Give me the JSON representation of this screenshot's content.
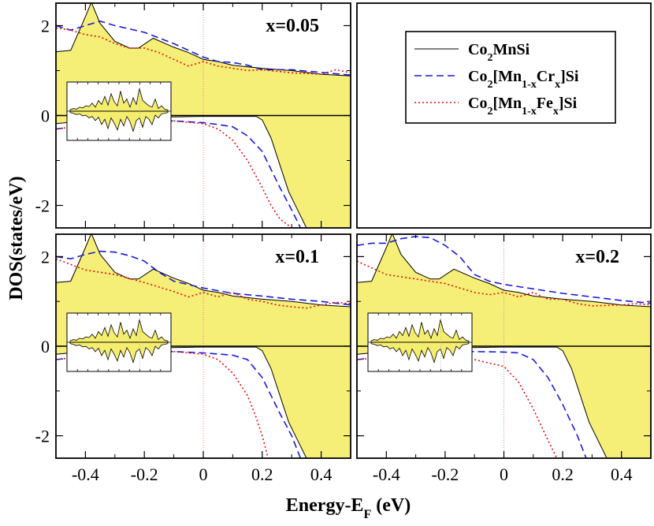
{
  "chart_data": {
    "type": "line",
    "xlabel": "Energy-E",
    "xlabel_sub": "F",
    "xlabel_unit": "(eV)",
    "ylabel": "DOS(states/eV)",
    "xlim": [
      -0.5,
      0.5
    ],
    "ylim": [
      -2.5,
      2.5
    ],
    "x_ticks": [
      "-0.4",
      "-0.2",
      "0",
      "0.2",
      "0.4"
    ],
    "x_tick_values": [
      -0.4,
      -0.2,
      0,
      0.2,
      0.4
    ],
    "y_ticks": [
      "2",
      "0",
      "-2"
    ],
    "y_tick_values": [
      2,
      0,
      -2
    ],
    "legend": [
      {
        "name": "Co2MnSi",
        "style": "solid",
        "color": "#000000"
      },
      {
        "name": "Co2[Mn1-xCrx]Si",
        "style": "dashed",
        "color": "#1a1ad6"
      },
      {
        "name": "Co2[Mn1-xFex]Si",
        "style": "dotted",
        "color": "#e01010"
      }
    ],
    "legend_html": [
      "Co<tspan baseline-shift=\"sub\" font-size=\"14\">2</tspan>MnSi",
      "Co<tspan baseline-shift=\"sub\" font-size=\"14\">2</tspan>[Mn<tspan baseline-shift=\"sub\" font-size=\"14\">1-x</tspan>Cr<tspan baseline-shift=\"sub\" font-size=\"14\">x</tspan>]Si",
      "Co<tspan baseline-shift=\"sub\" font-size=\"14\">2</tspan>[Mn<tspan baseline-shift=\"sub\" font-size=\"14\">1-x</tspan>Fe<tspan baseline-shift=\"sub\" font-size=\"14\">x</tspan>]Si"
    ],
    "fill_color": "#f2e84a",
    "series_base": {
      "name": "Co2MnSi",
      "up": [
        [
          -0.5,
          1.42
        ],
        [
          -0.45,
          1.45
        ],
        [
          -0.4,
          2.2
        ],
        [
          -0.38,
          2.52
        ],
        [
          -0.35,
          2.05
        ],
        [
          -0.3,
          1.65
        ],
        [
          -0.25,
          1.5
        ],
        [
          -0.22,
          1.5
        ],
        [
          -0.17,
          1.72
        ],
        [
          -0.1,
          1.52
        ],
        [
          -0.05,
          1.4
        ],
        [
          0,
          1.25
        ],
        [
          0.05,
          1.2
        ],
        [
          0.1,
          1.12
        ],
        [
          0.2,
          1.05
        ],
        [
          0.3,
          1.0
        ],
        [
          0.4,
          0.92
        ],
        [
          0.5,
          0.88
        ]
      ],
      "down": [
        [
          -0.5,
          -0.18
        ],
        [
          -0.4,
          -0.12
        ],
        [
          -0.3,
          -0.05
        ],
        [
          -0.2,
          -0.03
        ],
        [
          -0.1,
          -0.03
        ],
        [
          0,
          -0.02
        ],
        [
          0.1,
          -0.02
        ],
        [
          0.18,
          -0.02
        ],
        [
          0.2,
          -0.1
        ],
        [
          0.23,
          -0.5
        ],
        [
          0.26,
          -1.1
        ],
        [
          0.29,
          -1.7
        ],
        [
          0.32,
          -2.1
        ],
        [
          0.35,
          -2.5
        ]
      ]
    },
    "panels": [
      {
        "label": "x=0.05",
        "cr_up": [
          [
            -0.5,
            2.0
          ],
          [
            -0.45,
            1.9
          ],
          [
            -0.4,
            2.0
          ],
          [
            -0.35,
            2.1
          ],
          [
            -0.3,
            2.0
          ],
          [
            -0.2,
            1.85
          ],
          [
            -0.1,
            1.6
          ],
          [
            0,
            1.3
          ],
          [
            0.05,
            1.2
          ],
          [
            0.1,
            1.18
          ],
          [
            0.15,
            1.12
          ],
          [
            0.2,
            1.02
          ],
          [
            0.3,
            1.02
          ],
          [
            0.4,
            0.96
          ],
          [
            0.5,
            0.9
          ]
        ],
        "fe_up": [
          [
            -0.5,
            1.95
          ],
          [
            -0.45,
            1.9
          ],
          [
            -0.4,
            1.8
          ],
          [
            -0.35,
            1.75
          ],
          [
            -0.3,
            1.6
          ],
          [
            -0.25,
            1.5
          ],
          [
            -0.2,
            1.5
          ],
          [
            -0.15,
            1.4
          ],
          [
            -0.1,
            1.25
          ],
          [
            -0.05,
            1.1
          ],
          [
            0,
            1.2
          ],
          [
            0.05,
            1.1
          ],
          [
            0.1,
            1.05
          ],
          [
            0.15,
            1.0
          ],
          [
            0.2,
            1.02
          ],
          [
            0.3,
            0.95
          ],
          [
            0.4,
            0.92
          ],
          [
            0.45,
            1.02
          ],
          [
            0.5,
            0.95
          ]
        ],
        "cr_down": [
          [
            -0.5,
            -0.3
          ],
          [
            -0.4,
            -0.22
          ],
          [
            -0.3,
            -0.15
          ],
          [
            -0.2,
            -0.12
          ],
          [
            -0.1,
            -0.12
          ],
          [
            0,
            -0.16
          ],
          [
            0.05,
            -0.2
          ],
          [
            0.1,
            -0.25
          ],
          [
            0.15,
            -0.45
          ],
          [
            0.2,
            -0.8
          ],
          [
            0.23,
            -1.2
          ],
          [
            0.26,
            -1.6
          ],
          [
            0.3,
            -2.1
          ],
          [
            0.33,
            -2.5
          ]
        ],
        "fe_down": [
          [
            -0.5,
            -0.3
          ],
          [
            -0.4,
            -0.22
          ],
          [
            -0.3,
            -0.15
          ],
          [
            -0.2,
            -0.12
          ],
          [
            -0.1,
            -0.12
          ],
          [
            0,
            -0.18
          ],
          [
            0.05,
            -0.3
          ],
          [
            0.1,
            -0.55
          ],
          [
            0.15,
            -1.0
          ],
          [
            0.2,
            -1.6
          ],
          [
            0.23,
            -2.0
          ],
          [
            0.26,
            -2.3
          ],
          [
            0.3,
            -2.5
          ]
        ]
      },
      {
        "label": "x=0.1",
        "cr_up": [
          [
            -0.5,
            2.0
          ],
          [
            -0.45,
            1.95
          ],
          [
            -0.4,
            2.05
          ],
          [
            -0.35,
            2.12
          ],
          [
            -0.3,
            2.1
          ],
          [
            -0.25,
            2.02
          ],
          [
            -0.2,
            1.9
          ],
          [
            -0.15,
            1.65
          ],
          [
            -0.1,
            1.45
          ],
          [
            0,
            1.3
          ],
          [
            0.1,
            1.18
          ],
          [
            0.2,
            1.12
          ],
          [
            0.3,
            1.05
          ],
          [
            0.4,
            1.0
          ],
          [
            0.5,
            0.92
          ]
        ],
        "fe_up": [
          [
            -0.5,
            1.95
          ],
          [
            -0.4,
            1.7
          ],
          [
            -0.3,
            1.6
          ],
          [
            -0.2,
            1.42
          ],
          [
            -0.1,
            1.22
          ],
          [
            -0.05,
            1.1
          ],
          [
            0,
            1.2
          ],
          [
            0.05,
            1.1
          ],
          [
            0.1,
            1.2
          ],
          [
            0.15,
            1.05
          ],
          [
            0.2,
            1.0
          ],
          [
            0.25,
            0.92
          ],
          [
            0.3,
            0.88
          ],
          [
            0.35,
            0.85
          ],
          [
            0.4,
            0.92
          ],
          [
            0.45,
            0.98
          ],
          [
            0.5,
            0.95
          ]
        ],
        "cr_down": [
          [
            -0.5,
            -0.3
          ],
          [
            -0.4,
            -0.22
          ],
          [
            -0.3,
            -0.15
          ],
          [
            -0.2,
            -0.12
          ],
          [
            -0.1,
            -0.12
          ],
          [
            0,
            -0.15
          ],
          [
            0.1,
            -0.2
          ],
          [
            0.15,
            -0.3
          ],
          [
            0.2,
            -0.7
          ],
          [
            0.23,
            -1.1
          ],
          [
            0.26,
            -1.5
          ],
          [
            0.3,
            -2.0
          ],
          [
            0.33,
            -2.5
          ]
        ],
        "fe_down": [
          [
            -0.5,
            -0.3
          ],
          [
            -0.4,
            -0.22
          ],
          [
            -0.3,
            -0.15
          ],
          [
            -0.2,
            -0.12
          ],
          [
            -0.1,
            -0.12
          ],
          [
            0,
            -0.18
          ],
          [
            0.05,
            -0.3
          ],
          [
            0.1,
            -0.6
          ],
          [
            0.15,
            -1.1
          ],
          [
            0.18,
            -1.6
          ],
          [
            0.2,
            -2.0
          ],
          [
            0.22,
            -2.5
          ]
        ]
      },
      {
        "label": "x=0.2",
        "cr_up": [
          [
            -0.5,
            2.25
          ],
          [
            -0.45,
            2.3
          ],
          [
            -0.4,
            2.3
          ],
          [
            -0.35,
            2.4
          ],
          [
            -0.3,
            2.45
          ],
          [
            -0.25,
            2.42
          ],
          [
            -0.2,
            2.25
          ],
          [
            -0.15,
            2.0
          ],
          [
            -0.1,
            1.6
          ],
          [
            -0.05,
            1.45
          ],
          [
            0,
            1.38
          ],
          [
            0.1,
            1.28
          ],
          [
            0.2,
            1.18
          ],
          [
            0.3,
            1.1
          ],
          [
            0.4,
            1.02
          ],
          [
            0.5,
            0.96
          ]
        ],
        "fe_up": [
          [
            -0.5,
            1.9
          ],
          [
            -0.45,
            1.75
          ],
          [
            -0.4,
            1.6
          ],
          [
            -0.3,
            1.5
          ],
          [
            -0.2,
            1.4
          ],
          [
            -0.1,
            1.2
          ],
          [
            -0.05,
            1.15
          ],
          [
            0,
            1.2
          ],
          [
            0.05,
            1.1
          ],
          [
            0.1,
            1.2
          ],
          [
            0.15,
            1.05
          ],
          [
            0.2,
            1.05
          ],
          [
            0.25,
            0.95
          ],
          [
            0.3,
            0.9
          ],
          [
            0.4,
            0.92
          ],
          [
            0.45,
            0.95
          ],
          [
            0.5,
            0.92
          ]
        ],
        "cr_down": [
          [
            -0.5,
            -0.3
          ],
          [
            -0.4,
            -0.22
          ],
          [
            -0.3,
            -0.15
          ],
          [
            -0.2,
            -0.12
          ],
          [
            -0.1,
            -0.12
          ],
          [
            0,
            -0.13
          ],
          [
            0.05,
            -0.15
          ],
          [
            0.1,
            -0.3
          ],
          [
            0.15,
            -0.7
          ],
          [
            0.2,
            -1.3
          ],
          [
            0.25,
            -2.0
          ],
          [
            0.28,
            -2.5
          ]
        ],
        "fe_down": [
          [
            -0.5,
            -0.3
          ],
          [
            -0.4,
            -0.25
          ],
          [
            -0.3,
            -0.2
          ],
          [
            -0.2,
            -0.18
          ],
          [
            -0.1,
            -0.3
          ],
          [
            0,
            -0.45
          ],
          [
            0.05,
            -0.8
          ],
          [
            0.1,
            -1.4
          ],
          [
            0.15,
            -2.1
          ],
          [
            0.18,
            -2.5
          ]
        ]
      }
    ]
  }
}
